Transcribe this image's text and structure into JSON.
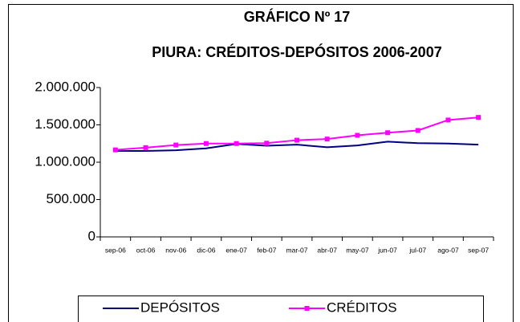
{
  "chart_data": {
    "type": "line",
    "title": "GRÁFICO Nº 17",
    "subtitle": "PIURA: CRÉDITOS-DEPÓSITOS 2006-2007",
    "categories": [
      "sep-06",
      "oct-06",
      "nov-06",
      "dic-06",
      "ene-07",
      "feb-07",
      "mar-07",
      "abr-07",
      "may-07",
      "jun-07",
      "jul-07",
      "ago-07",
      "sep-07"
    ],
    "series": [
      {
        "name": "DEPÓSITOS",
        "color": "#000080",
        "marker": "none",
        "values": [
          1150000,
          1150000,
          1160000,
          1185000,
          1245000,
          1220000,
          1235000,
          1200000,
          1225000,
          1275000,
          1255000,
          1250000,
          1235000
        ]
      },
      {
        "name": "CRÉDITOS",
        "color": "#ff00ff",
        "marker": "square",
        "values": [
          1165000,
          1195000,
          1230000,
          1250000,
          1250000,
          1255000,
          1295000,
          1310000,
          1360000,
          1395000,
          1425000,
          1565000,
          1600000
        ]
      }
    ],
    "ylim": [
      0,
      2000000
    ],
    "yticks": [
      0,
      {
        "value": 500000,
        "label": "500.000"
      },
      {
        "value": 1000000,
        "label": "1.000.000"
      },
      {
        "value": 1500000,
        "label": "1.500.000"
      },
      {
        "value": 2000000,
        "label": "2.000.000"
      }
    ],
    "legend": "bottom"
  }
}
